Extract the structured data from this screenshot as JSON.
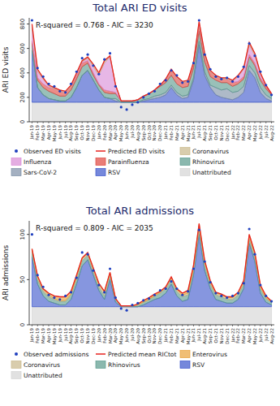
{
  "chart_data": [
    {
      "type": "area",
      "title": "Total ARI ED visits",
      "annotation": "R-squared = 0.768 - AIC = 3230",
      "y_label": "ARI ED visits",
      "categories": [
        "Jan-19",
        "Feb-19",
        "Mar-19",
        "Apr-19",
        "May-19",
        "Jun-19",
        "Jul-19",
        "Aug-19",
        "Sep-19",
        "Oct-19",
        "Nov-19",
        "Dec-19",
        "Jan-20",
        "Feb-20",
        "Mar-20",
        "Apr-20",
        "May-20",
        "Jun-20",
        "Jul-20",
        "Aug-20",
        "Sep-20",
        "Oct-20",
        "Nov-20",
        "Dec-20",
        "Jan-21",
        "Feb-21",
        "Mar-21",
        "Apr-21",
        "May-21",
        "Jun-21",
        "Jul-21",
        "Aug-21",
        "Sep-21",
        "Oct-21",
        "Nov-21",
        "Dec-21",
        "Jan-22",
        "Feb-22",
        "Mar-22",
        "Apr-22",
        "May-22",
        "Jun-22",
        "Jul-22",
        "Aug-22"
      ],
      "ylim": [
        0,
        850
      ],
      "yticks": [
        0,
        200,
        400,
        600,
        800
      ],
      "grid": false,
      "stacked": true,
      "legend": "bottom",
      "series": [
        {
          "name": "Observed ED visits",
          "type": "scatter",
          "marker": "circle",
          "color": "#1f3fbf",
          "values": [
            830,
            440,
            370,
            310,
            290,
            250,
            240,
            310,
            410,
            520,
            550,
            460,
            390,
            510,
            560,
            290,
            120,
            100,
            140,
            160,
            200,
            230,
            250,
            310,
            340,
            420,
            380,
            320,
            330,
            480,
            830,
            550,
            430,
            370,
            350,
            360,
            330,
            370,
            450,
            640,
            540,
            410,
            300,
            220
          ]
        },
        {
          "name": "Predicted ED visits",
          "type": "line",
          "color": "#e8231f",
          "values": [
            800,
            430,
            360,
            300,
            280,
            260,
            250,
            300,
            400,
            500,
            530,
            470,
            400,
            500,
            540,
            300,
            170,
            170,
            170,
            180,
            210,
            230,
            260,
            300,
            350,
            430,
            370,
            330,
            340,
            490,
            820,
            560,
            420,
            380,
            360,
            360,
            340,
            380,
            440,
            650,
            560,
            400,
            300,
            230
          ]
        },
        {
          "name": "Coronavirus",
          "type": "area",
          "color": "#c9b88a",
          "values": [
            20,
            20,
            10,
            10,
            10,
            10,
            10,
            10,
            10,
            10,
            10,
            20,
            20,
            20,
            10,
            0,
            0,
            0,
            0,
            0,
            0,
            0,
            0,
            0,
            10,
            10,
            10,
            10,
            10,
            10,
            20,
            20,
            10,
            10,
            10,
            10,
            10,
            10,
            10,
            20,
            20,
            10,
            0,
            0
          ]
        },
        {
          "name": "Influenza",
          "type": "area",
          "color": "#d98ad6",
          "values": [
            100,
            50,
            40,
            10,
            0,
            0,
            0,
            0,
            10,
            10,
            20,
            50,
            70,
            220,
            280,
            60,
            0,
            0,
            0,
            0,
            0,
            0,
            0,
            0,
            0,
            0,
            0,
            0,
            0,
            0,
            0,
            0,
            0,
            0,
            0,
            0,
            10,
            40,
            60,
            80,
            60,
            30,
            10,
            0
          ]
        },
        {
          "name": "Parainfluenza",
          "type": "area",
          "color": "#e0463e",
          "values": [
            20,
            20,
            30,
            30,
            40,
            40,
            30,
            30,
            30,
            30,
            20,
            20,
            10,
            20,
            20,
            10,
            0,
            0,
            0,
            0,
            0,
            0,
            0,
            10,
            20,
            40,
            50,
            40,
            40,
            40,
            60,
            50,
            40,
            30,
            30,
            30,
            30,
            20,
            20,
            20,
            20,
            20,
            20,
            10
          ]
        },
        {
          "name": "Rhinovirus",
          "type": "area",
          "color": "#5a9a8c",
          "values": [
            60,
            60,
            60,
            60,
            50,
            40,
            40,
            60,
            70,
            70,
            60,
            40,
            40,
            40,
            40,
            40,
            10,
            10,
            10,
            20,
            30,
            40,
            50,
            70,
            80,
            80,
            70,
            70,
            70,
            80,
            80,
            80,
            70,
            60,
            60,
            50,
            50,
            60,
            60,
            70,
            60,
            60,
            50,
            30
          ]
        },
        {
          "name": "Sars-CoV-2",
          "type": "area",
          "color": "#7d8fa6",
          "values": [
            0,
            0,
            0,
            0,
            0,
            0,
            0,
            0,
            0,
            0,
            0,
            0,
            0,
            0,
            0,
            20,
            0,
            0,
            0,
            0,
            10,
            10,
            20,
            20,
            20,
            20,
            20,
            20,
            20,
            20,
            30,
            30,
            20,
            60,
            60,
            80,
            60,
            50,
            50,
            40,
            40,
            40,
            30,
            20
          ]
        },
        {
          "name": "RSV",
          "type": "area",
          "color": "#3b55cc",
          "values": [
            420,
            120,
            60,
            30,
            20,
            10,
            10,
            40,
            120,
            220,
            260,
            180,
            100,
            40,
            30,
            10,
            0,
            0,
            0,
            0,
            10,
            20,
            30,
            40,
            60,
            120,
            60,
            30,
            40,
            180,
            470,
            220,
            120,
            60,
            40,
            30,
            20,
            40,
            80,
            260,
            200,
            80,
            30,
            10
          ]
        },
        {
          "name": "Unattributed",
          "type": "area",
          "color": "#d4d4d4",
          "values": [
            160,
            160,
            160,
            160,
            160,
            160,
            160,
            160,
            160,
            160,
            160,
            160,
            160,
            160,
            160,
            160,
            160,
            160,
            160,
            160,
            160,
            160,
            160,
            160,
            160,
            160,
            160,
            160,
            160,
            160,
            160,
            160,
            160,
            160,
            160,
            160,
            160,
            160,
            160,
            160,
            160,
            160,
            160,
            160
          ]
        }
      ]
    },
    {
      "type": "area",
      "title": "Total ARI admissions",
      "annotation": "R-squared = 0.809 - AIC = 2035",
      "y_label": "ARI admissions",
      "categories": [
        "Jan-19",
        "Feb-19",
        "Mar-19",
        "Apr-19",
        "May-19",
        "Jun-19",
        "Jul-19",
        "Aug-19",
        "Sep-19",
        "Oct-19",
        "Nov-19",
        "Dec-19",
        "Jan-20",
        "Feb-20",
        "Mar-20",
        "Apr-20",
        "May-20",
        "Jun-20",
        "Jul-20",
        "Aug-20",
        "Sep-20",
        "Oct-20",
        "Nov-20",
        "Dec-20",
        "Jan-21",
        "Feb-21",
        "Mar-21",
        "Apr-21",
        "May-21",
        "Jun-21",
        "Jul-21",
        "Aug-21",
        "Sep-21",
        "Oct-21",
        "Nov-21",
        "Dec-21",
        "Jan-22",
        "Feb-22",
        "Mar-22",
        "Apr-22",
        "May-22",
        "Jun-22",
        "Jul-22",
        "Aug-22"
      ],
      "ylim": [
        0,
        115
      ],
      "yticks": [
        0,
        50,
        100
      ],
      "grid": false,
      "stacked": true,
      "legend": "bottom",
      "series": [
        {
          "name": "Observed admissions",
          "type": "scatter",
          "marker": "circle",
          "color": "#1f3fbf",
          "values": [
            100,
            55,
            42,
            33,
            30,
            28,
            32,
            36,
            52,
            80,
            78,
            60,
            44,
            36,
            62,
            30,
            18,
            16,
            22,
            24,
            27,
            29,
            33,
            38,
            40,
            48,
            40,
            33,
            37,
            62,
            105,
            70,
            47,
            35,
            32,
            30,
            32,
            35,
            46,
            106,
            78,
            44,
            32,
            26
          ]
        },
        {
          "name": "Predicted mean RICtot",
          "type": "line",
          "color": "#e8231f",
          "values": [
            84,
            54,
            40,
            35,
            32,
            31,
            31,
            37,
            55,
            74,
            80,
            63,
            46,
            37,
            58,
            29,
            21,
            21,
            21,
            23,
            27,
            30,
            34,
            37,
            42,
            53,
            40,
            35,
            38,
            66,
            112,
            71,
            49,
            36,
            34,
            31,
            31,
            36,
            49,
            100,
            80,
            44,
            32,
            26
          ]
        },
        {
          "name": "Enterovirus",
          "type": "area",
          "color": "#e9a23b",
          "values": [
            1,
            1,
            1,
            2,
            3,
            4,
            4,
            3,
            2,
            1,
            1,
            1,
            1,
            1,
            1,
            0,
            0,
            0,
            0,
            1,
            2,
            2,
            2,
            1,
            1,
            1,
            1,
            2,
            3,
            3,
            3,
            2,
            2,
            1,
            1,
            1,
            1,
            1,
            2,
            2,
            2,
            2,
            2,
            1
          ]
        },
        {
          "name": "Coronavirus",
          "type": "area",
          "color": "#c9b88a",
          "values": [
            3,
            3,
            2,
            2,
            1,
            1,
            1,
            1,
            2,
            2,
            2,
            3,
            3,
            4,
            3,
            1,
            0,
            0,
            0,
            0,
            0,
            0,
            0,
            1,
            1,
            2,
            2,
            2,
            2,
            2,
            3,
            3,
            2,
            2,
            2,
            2,
            2,
            2,
            2,
            3,
            3,
            2,
            1,
            0
          ]
        },
        {
          "name": "Rhinovirus",
          "type": "area",
          "color": "#5a9a8c",
          "values": [
            5,
            5,
            5,
            5,
            4,
            4,
            4,
            5,
            6,
            6,
            5,
            4,
            4,
            4,
            4,
            3,
            1,
            1,
            1,
            2,
            3,
            3,
            4,
            5,
            5,
            5,
            5,
            5,
            5,
            6,
            6,
            6,
            5,
            5,
            5,
            4,
            4,
            5,
            5,
            5,
            5,
            5,
            4,
            3
          ]
        },
        {
          "name": "RSV",
          "type": "area",
          "color": "#3b55cc",
          "values": [
            55,
            25,
            12,
            6,
            4,
            2,
            2,
            8,
            25,
            45,
            52,
            35,
            18,
            8,
            30,
            5,
            0,
            0,
            0,
            0,
            2,
            5,
            8,
            10,
            15,
            25,
            12,
            6,
            8,
            35,
            80,
            40,
            20,
            8,
            6,
            4,
            4,
            8,
            20,
            70,
            50,
            15,
            5,
            2
          ]
        },
        {
          "name": "Unattributed",
          "type": "area",
          "color": "#d4d4d4",
          "values": [
            20,
            20,
            20,
            20,
            20,
            20,
            20,
            20,
            20,
            20,
            20,
            20,
            20,
            20,
            20,
            20,
            20,
            20,
            20,
            20,
            20,
            20,
            20,
            20,
            20,
            20,
            20,
            20,
            20,
            20,
            20,
            20,
            20,
            20,
            20,
            20,
            20,
            20,
            20,
            20,
            20,
            20,
            20,
            20
          ]
        }
      ]
    }
  ]
}
